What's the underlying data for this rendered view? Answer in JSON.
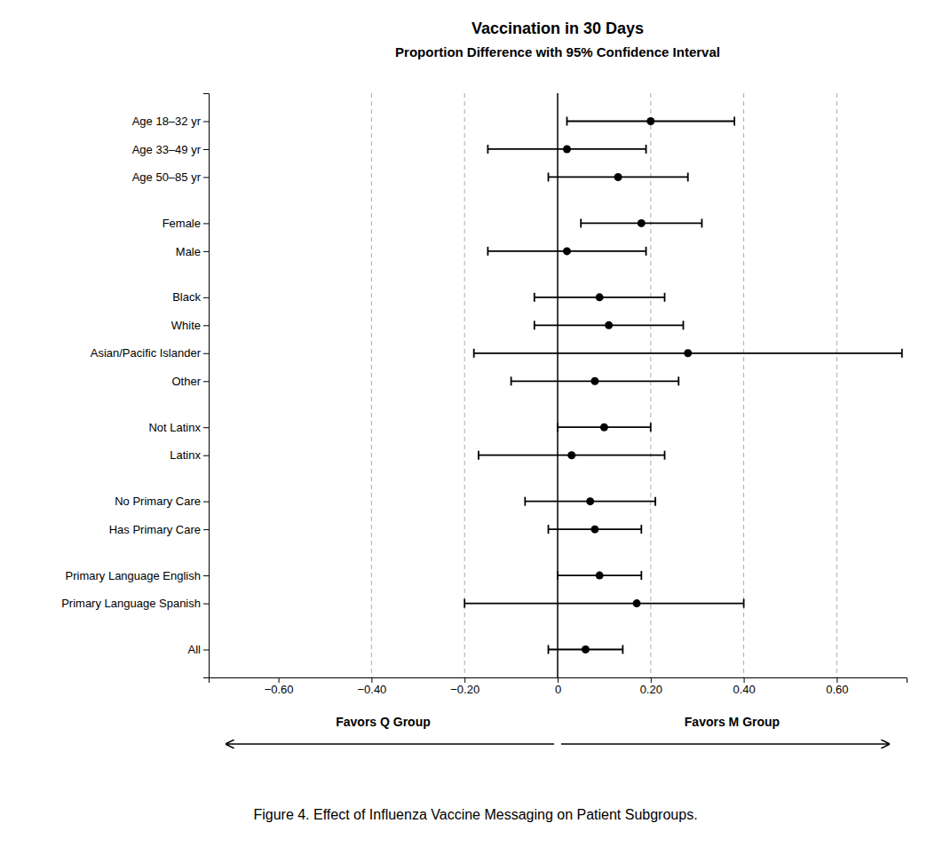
{
  "chart_data": {
    "type": "forest",
    "orientation": "horizontal",
    "title": "Vaccination in 30 Days",
    "subtitle": "Proportion Difference with 95% Confidence Interval",
    "caption": "Figure 4. Effect of Influenza Vaccine Messaging on Patient Subgroups.",
    "annotations": [
      "Favors Q Group",
      "Favors M Group"
    ],
    "categories": [
      "Age 18–32 yr",
      "Age 33–49 yr",
      "Age 50–85 yr",
      "Female",
      "Male",
      "Black",
      "White",
      "Asian/Pacific Islander",
      "Other",
      "Not Latinx",
      "Latinx",
      "No Primary Care",
      "Has Primary Care",
      "Primary Language English",
      "Primary Language Spanish",
      "All"
    ],
    "groups": [
      0,
      0,
      0,
      1,
      1,
      2,
      2,
      2,
      2,
      3,
      3,
      4,
      4,
      5,
      5,
      6
    ],
    "values": [
      0.2,
      0.02,
      0.13,
      0.18,
      0.02,
      0.09,
      0.11,
      0.28,
      0.08,
      0.1,
      0.03,
      0.07,
      0.08,
      0.09,
      0.17,
      0.06
    ],
    "ci_lower": [
      0.02,
      -0.15,
      -0.02,
      0.05,
      -0.15,
      -0.05,
      -0.05,
      -0.18,
      -0.1,
      0.0,
      -0.17,
      -0.07,
      -0.02,
      0.0,
      -0.2,
      -0.02
    ],
    "ci_upper": [
      0.38,
      0.19,
      0.28,
      0.31,
      0.19,
      0.23,
      0.27,
      0.74,
      0.26,
      0.2,
      0.23,
      0.21,
      0.18,
      0.18,
      0.4,
      0.14
    ],
    "color": "#000000",
    "xlim": [
      -0.75,
      0.75
    ],
    "xticks": [
      {
        "value": -0.6,
        "label": "−0.60"
      },
      {
        "value": -0.4,
        "label": "−0.40"
      },
      {
        "value": -0.2,
        "label": "−0.20"
      },
      0,
      {
        "value": 0.2,
        "label": "0.20"
      },
      {
        "value": 0.4,
        "label": "0.40"
      },
      {
        "value": 0.6,
        "label": "0.60"
      }
    ],
    "reference_lines": [
      -0.4,
      -0.2,
      0.2,
      0.4,
      0.6
    ],
    "zero_line": 0.0
  }
}
